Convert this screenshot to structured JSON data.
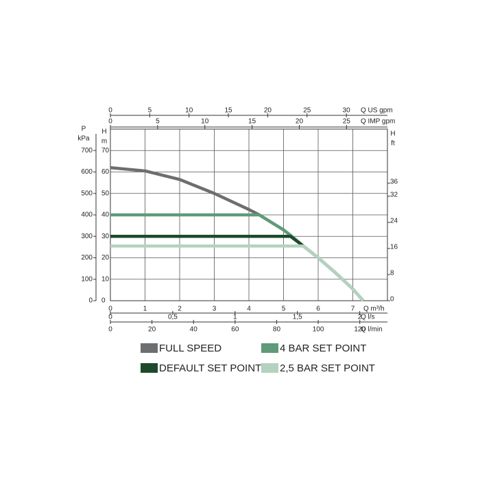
{
  "chart_data": {
    "type": "line",
    "xlabel": "Q m³/h",
    "xlim": [
      0,
      8
    ],
    "xticks": [
      0,
      1,
      2,
      3,
      4,
      5,
      6,
      7
    ],
    "ylabel": [
      "H",
      "m"
    ],
    "ylim": [
      0,
      80
    ],
    "yticks": [
      0,
      10,
      20,
      30,
      40,
      50,
      60,
      70
    ],
    "grid": true,
    "p_axis": {
      "label": [
        "P",
        "kPa"
      ],
      "lim": [
        0,
        800
      ],
      "ticks": [
        0,
        100,
        200,
        300,
        400,
        500,
        600,
        700
      ]
    },
    "y2label": [
      "H",
      "ft"
    ],
    "y2lim": [
      0,
      52.6
    ],
    "y2ticks": [
      0,
      8,
      16,
      24,
      32,
      36
    ],
    "top_axes": [
      {
        "label": "Q US gpm",
        "lim": [
          0,
          35.22
        ],
        "ticks": [
          0,
          5,
          10,
          15,
          20,
          25,
          30
        ]
      },
      {
        "label": "Q IMP gpm",
        "lim": [
          0,
          29.33
        ],
        "ticks": [
          0,
          5,
          10,
          15,
          20,
          25
        ]
      }
    ],
    "bottom_axes": [
      {
        "label": "Q l/s",
        "lim": [
          0,
          2.222
        ],
        "ticks": [
          0,
          {
            "value": 0.5,
            "label": "0,5"
          },
          1,
          {
            "value": 1.5,
            "label": "1,5"
          },
          2
        ]
      },
      {
        "label": "Q l/min",
        "lim": [
          0,
          133.3
        ],
        "ticks": [
          0,
          20,
          40,
          60,
          80,
          100,
          120
        ]
      }
    ],
    "series": [
      {
        "name": "FULL SPEED",
        "color": "#6d6e70",
        "x": [
          0,
          1,
          2,
          3,
          4,
          4.3,
          5,
          5.2,
          5.57,
          6,
          6.5,
          7,
          7.3
        ],
        "values": [
          62,
          60.5,
          56.5,
          50,
          42.5,
          40,
          33,
          30.5,
          25.5,
          20,
          13,
          5.5,
          0
        ]
      },
      {
        "name": "4 BAR SET POINT",
        "color": "#5f9b78",
        "x": [
          0,
          4.3,
          5,
          5.2,
          5.57,
          6,
          6.5,
          7,
          7.3
        ],
        "values": [
          40,
          40,
          33,
          30.5,
          25.5,
          20,
          13,
          5.5,
          0
        ]
      },
      {
        "name": "DEFAULT SET POINT",
        "color": "#1d4a2a",
        "x": [
          0,
          5.2,
          5.57
        ],
        "values": [
          30,
          30,
          25.5
        ]
      },
      {
        "name": "2,5 BAR SET POINT",
        "color": "#b4d2bf",
        "x": [
          0,
          5.57,
          6,
          6.5,
          7,
          7.3
        ],
        "values": [
          25.5,
          25.5,
          20,
          13,
          5.5,
          0
        ]
      }
    ]
  }
}
